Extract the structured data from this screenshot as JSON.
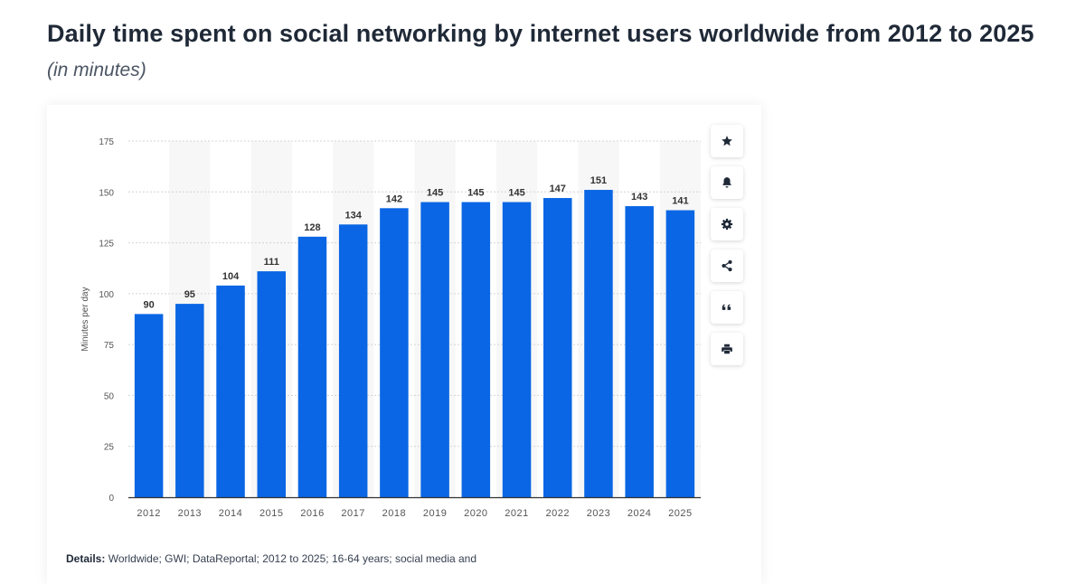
{
  "title": "Daily time spent on social networking by internet users worldwide from 2012 to 2025",
  "subtitle": "(in minutes)",
  "toolbar": [
    {
      "name": "favorite-button",
      "icon": "star-icon"
    },
    {
      "name": "notification-button",
      "icon": "bell-icon"
    },
    {
      "name": "settings-button",
      "icon": "gear-icon"
    },
    {
      "name": "share-button",
      "icon": "share-icon"
    },
    {
      "name": "cite-button",
      "icon": "quote-icon"
    },
    {
      "name": "print-button",
      "icon": "print-icon"
    }
  ],
  "details": {
    "label": "Details:",
    "text": "Worldwide; GWI; DataReportal; 2012 to 2025; 16-64 years; social media and"
  },
  "chart_data": {
    "type": "bar",
    "categories": [
      "2012",
      "2013",
      "2014",
      "2015",
      "2016",
      "2017",
      "2018",
      "2019",
      "2020",
      "2021",
      "2022",
      "2023",
      "2024",
      "2025"
    ],
    "values": [
      90,
      95,
      104,
      111,
      128,
      134,
      142,
      145,
      145,
      145,
      147,
      151,
      143,
      141
    ],
    "ylabel": "Minutes per day",
    "ylim": [
      0,
      175
    ],
    "yticks": [
      0,
      25,
      50,
      75,
      100,
      125,
      150,
      175
    ],
    "grid": true,
    "bar_color": "#0a66e4",
    "band_color": "#f7f7f7",
    "grid_color": "#d4d4d4",
    "axis_color": "#333333",
    "label_color": "#333333",
    "tick_color": "#555555"
  }
}
